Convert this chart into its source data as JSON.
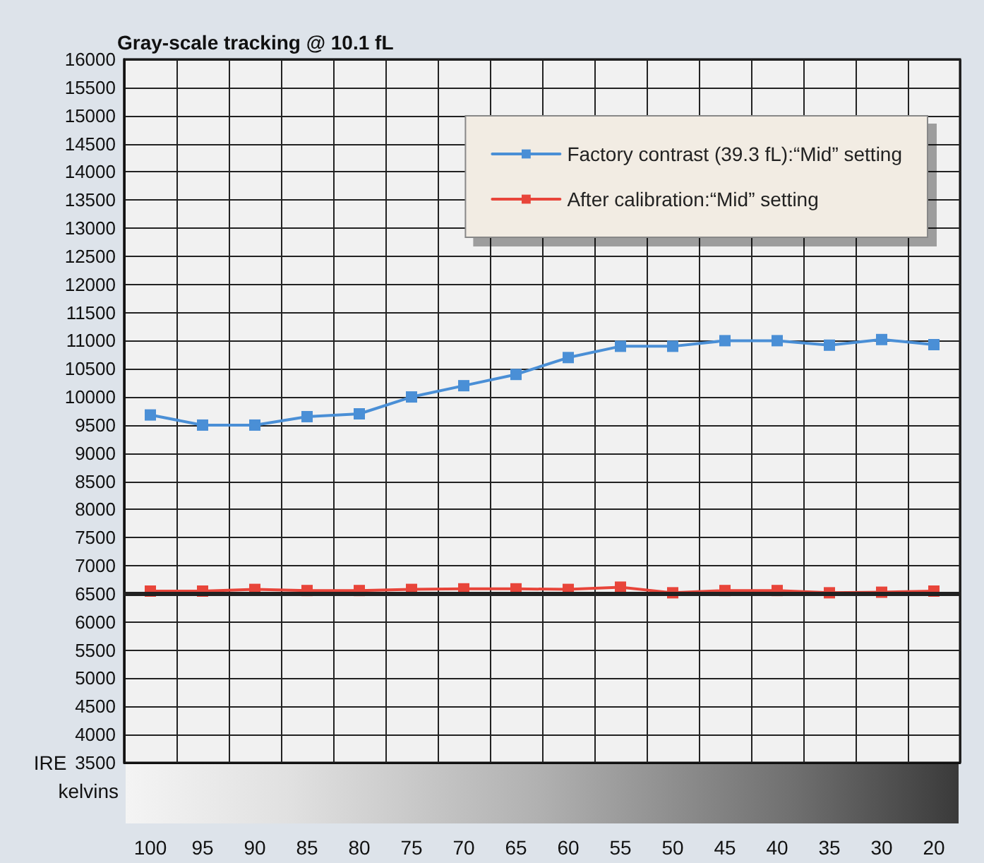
{
  "chart_data": {
    "type": "line",
    "title": "Gray-scale tracking @ 10.1 fL",
    "xlabel": "IRE",
    "annotations": [
      "kelvins"
    ],
    "categories": [
      "100",
      "95",
      "90",
      "85",
      "80",
      "75",
      "70",
      "65",
      "60",
      "55",
      "50",
      "45",
      "40",
      "35",
      "30",
      "20"
    ],
    "series": [
      {
        "name": "Factory contrast (39.3 fL):“Mid” setting",
        "color": "#4a8fd6",
        "values": [
          9680,
          9500,
          9500,
          9650,
          9700,
          10000,
          10200,
          10400,
          10700,
          10900,
          10900,
          11000,
          11000,
          10920,
          11020,
          10930
        ]
      },
      {
        "name": "After calibration:“Mid” setting",
        "color": "#e8453a",
        "values": [
          6550,
          6550,
          6580,
          6560,
          6560,
          6580,
          6590,
          6590,
          6580,
          6620,
          6520,
          6560,
          6560,
          6520,
          6530,
          6550
        ]
      }
    ],
    "ylim": [
      3500,
      16000
    ],
    "yticks": [
      3500,
      4000,
      4500,
      5000,
      5500,
      6000,
      6500,
      7000,
      7500,
      8000,
      8500,
      9000,
      9500,
      10000,
      10500,
      11000,
      11500,
      12000,
      12500,
      13000,
      13500,
      14000,
      14500,
      15000,
      15500,
      16000
    ],
    "ref_lines": [
      {
        "axis": "y",
        "value": 6500,
        "color": "#222222"
      }
    ],
    "grid": true,
    "legend": "top right",
    "marker": "square",
    "line_style": "solid"
  }
}
